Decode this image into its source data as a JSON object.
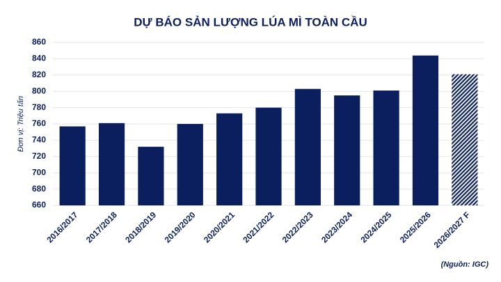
{
  "chart_data": {
    "type": "bar",
    "title": "DỰ BÁO SẢN LƯỢNG LÚA MÌ TOÀN CẦU",
    "y_label": "Đơn vị: Triệu tấn",
    "source": "(Nguồn: IGC)",
    "categories": [
      "2016/2017",
      "2017/2018",
      "2018/2019",
      "2019/2020",
      "2020/2021",
      "2021/2022",
      "2022/2023",
      "2023/2024",
      "2024/2025",
      "2025/2026",
      "2026/2027 F"
    ],
    "values": [
      757,
      761,
      732,
      760,
      773,
      780,
      803,
      795,
      801,
      844,
      821
    ],
    "patterns": [
      "solid",
      "solid",
      "solid",
      "solid",
      "solid",
      "solid",
      "solid",
      "solid",
      "solid",
      "solid",
      "hatched"
    ],
    "color": "#0b1f5e",
    "ylim": [
      660,
      860
    ],
    "yticks": [
      660,
      680,
      700,
      720,
      740,
      760,
      780,
      800,
      820,
      840,
      860
    ],
    "grid": true
  }
}
